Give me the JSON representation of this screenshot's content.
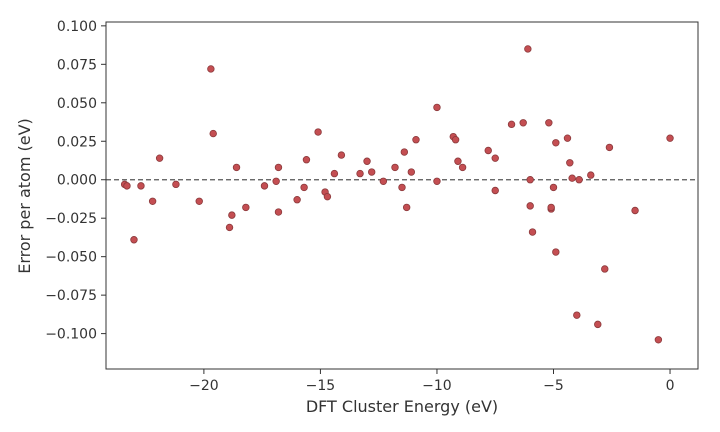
{
  "chart_data": {
    "type": "scatter",
    "xlabel": "DFT Cluster Energy (eV)",
    "ylabel": "Error per atom (eV)",
    "xlim": [
      -24.2,
      1.2
    ],
    "ylim": [
      -0.123,
      0.1025
    ],
    "xticks": [
      -20,
      -15,
      -10,
      -5,
      0
    ],
    "xtick_labels": [
      "−20",
      "−15",
      "−10",
      "−5",
      "0"
    ],
    "yticks": [
      0.1,
      0.075,
      0.05,
      0.025,
      0.0,
      -0.025,
      -0.05,
      -0.075,
      -0.1
    ],
    "ytick_labels": [
      "0.100",
      "0.075",
      "0.050",
      "0.025",
      "0.000",
      "−0.025",
      "−0.050",
      "−0.075",
      "−0.100"
    ],
    "reference_line": {
      "y": 0.0,
      "style": "dashed",
      "color": "#555555"
    },
    "grid": false,
    "marker_color": "#c44e52",
    "marker_edge_color": "#8b3a3c",
    "points": [
      {
        "x": -23.4,
        "y": -0.003
      },
      {
        "x": -23.3,
        "y": -0.004
      },
      {
        "x": -23.0,
        "y": -0.039
      },
      {
        "x": -22.7,
        "y": -0.004
      },
      {
        "x": -22.2,
        "y": -0.014
      },
      {
        "x": -21.9,
        "y": 0.014
      },
      {
        "x": -21.2,
        "y": -0.003
      },
      {
        "x": -20.2,
        "y": -0.014
      },
      {
        "x": -19.7,
        "y": 0.072
      },
      {
        "x": -19.6,
        "y": 0.03
      },
      {
        "x": -18.9,
        "y": -0.031
      },
      {
        "x": -18.8,
        "y": -0.023
      },
      {
        "x": -18.6,
        "y": 0.008
      },
      {
        "x": -18.2,
        "y": -0.018
      },
      {
        "x": -17.4,
        "y": -0.004
      },
      {
        "x": -16.9,
        "y": -0.001
      },
      {
        "x": -16.8,
        "y": 0.008
      },
      {
        "x": -16.8,
        "y": -0.021
      },
      {
        "x": -16.0,
        "y": -0.013
      },
      {
        "x": -15.7,
        "y": -0.005
      },
      {
        "x": -15.6,
        "y": 0.013
      },
      {
        "x": -15.1,
        "y": 0.031
      },
      {
        "x": -14.8,
        "y": -0.008
      },
      {
        "x": -14.7,
        "y": -0.011
      },
      {
        "x": -14.4,
        "y": 0.004
      },
      {
        "x": -14.1,
        "y": 0.016
      },
      {
        "x": -13.3,
        "y": 0.004
      },
      {
        "x": -13.0,
        "y": 0.012
      },
      {
        "x": -12.8,
        "y": 0.005
      },
      {
        "x": -12.3,
        "y": -0.001
      },
      {
        "x": -11.8,
        "y": 0.008
      },
      {
        "x": -11.5,
        "y": -0.005
      },
      {
        "x": -11.4,
        "y": 0.018
      },
      {
        "x": -11.3,
        "y": -0.018
      },
      {
        "x": -11.1,
        "y": 0.005
      },
      {
        "x": -10.9,
        "y": 0.026
      },
      {
        "x": -10.0,
        "y": 0.047
      },
      {
        "x": -10.0,
        "y": -0.001
      },
      {
        "x": -9.3,
        "y": 0.028
      },
      {
        "x": -9.2,
        "y": 0.026
      },
      {
        "x": -9.1,
        "y": 0.012
      },
      {
        "x": -8.9,
        "y": 0.008
      },
      {
        "x": -7.8,
        "y": 0.019
      },
      {
        "x": -7.5,
        "y": 0.014
      },
      {
        "x": -7.5,
        "y": -0.007
      },
      {
        "x": -6.8,
        "y": 0.036
      },
      {
        "x": -6.3,
        "y": 0.037
      },
      {
        "x": -6.1,
        "y": 0.085
      },
      {
        "x": -6.0,
        "y": 0.0
      },
      {
        "x": -6.0,
        "y": -0.017
      },
      {
        "x": -5.9,
        "y": -0.034
      },
      {
        "x": -5.2,
        "y": 0.037
      },
      {
        "x": -5.1,
        "y": -0.019
      },
      {
        "x": -5.1,
        "y": -0.018
      },
      {
        "x": -5.0,
        "y": -0.005
      },
      {
        "x": -4.9,
        "y": 0.024
      },
      {
        "x": -4.9,
        "y": -0.047
      },
      {
        "x": -4.4,
        "y": 0.027
      },
      {
        "x": -4.3,
        "y": 0.011
      },
      {
        "x": -4.2,
        "y": 0.001
      },
      {
        "x": -4.0,
        "y": -0.088
      },
      {
        "x": -3.9,
        "y": 0.0
      },
      {
        "x": -3.4,
        "y": 0.003
      },
      {
        "x": -3.1,
        "y": -0.094
      },
      {
        "x": -2.8,
        "y": -0.058
      },
      {
        "x": -2.6,
        "y": 0.021
      },
      {
        "x": -1.5,
        "y": -0.02
      },
      {
        "x": -0.5,
        "y": -0.104
      },
      {
        "x": 0.0,
        "y": 0.027
      }
    ]
  }
}
